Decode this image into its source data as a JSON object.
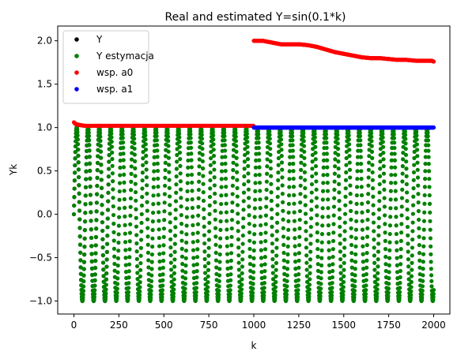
{
  "chart_data": {
    "type": "scatter",
    "title": "Real and estimated Y=sin(0.1*k)",
    "xlabel": "k",
    "ylabel": "Yk",
    "xlim": [
      -90,
      2090
    ],
    "ylim": [
      -1.15,
      2.17
    ],
    "x_ticks": [
      0,
      250,
      500,
      750,
      1000,
      1250,
      1500,
      1750,
      2000
    ],
    "x_tick_labels": [
      "0",
      "250",
      "500",
      "750",
      "1000",
      "1250",
      "1500",
      "1750",
      "2000"
    ],
    "y_ticks": [
      -1.0,
      -0.5,
      0.0,
      0.5,
      1.0,
      1.5,
      2.0
    ],
    "y_tick_labels": [
      "−1.0",
      "−0.5",
      "0.0",
      "0.5",
      "1.0",
      "1.5",
      "2.0"
    ],
    "grid": false,
    "legend_position": "upper-left",
    "series": [
      {
        "name": "Y",
        "color": "#000000",
        "description": "sin(0.1*k) sampled for k = 0..200 (largely covered by estimate)",
        "x_range": [
          0,
          200
        ],
        "step": 1,
        "function": "sin(0.1*k)"
      },
      {
        "name": "Y estymacja",
        "color": "#008000",
        "x_range": [
          0,
          2000
        ],
        "step": 1,
        "function": "sin(0.1*k)"
      },
      {
        "name": "wsp. a0",
        "color": "#ff0000",
        "points": [
          [
            0,
            1.06
          ],
          [
            10,
            1.04
          ],
          [
            30,
            1.03
          ],
          [
            60,
            1.02
          ],
          [
            100,
            1.02
          ],
          [
            200,
            1.02
          ],
          [
            500,
            1.02
          ],
          [
            800,
            1.02
          ],
          [
            990,
            1.02
          ],
          [
            1000,
            2.0
          ],
          [
            1050,
            2.0
          ],
          [
            1100,
            1.98
          ],
          [
            1150,
            1.96
          ],
          [
            1200,
            1.96
          ],
          [
            1250,
            1.96
          ],
          [
            1300,
            1.95
          ],
          [
            1350,
            1.93
          ],
          [
            1400,
            1.9
          ],
          [
            1450,
            1.87
          ],
          [
            1500,
            1.85
          ],
          [
            1550,
            1.83
          ],
          [
            1600,
            1.81
          ],
          [
            1650,
            1.8
          ],
          [
            1700,
            1.8
          ],
          [
            1750,
            1.79
          ],
          [
            1800,
            1.78
          ],
          [
            1850,
            1.78
          ],
          [
            1900,
            1.77
          ],
          [
            1950,
            1.77
          ],
          [
            1990,
            1.77
          ],
          [
            2000,
            1.76
          ]
        ]
      },
      {
        "name": "wsp. a1",
        "color": "#0000ff",
        "points": [
          [
            0,
            1.0
          ],
          [
            500,
            1.0
          ],
          [
            1000,
            1.0
          ],
          [
            1500,
            1.0
          ],
          [
            2000,
            1.0
          ]
        ]
      }
    ]
  }
}
